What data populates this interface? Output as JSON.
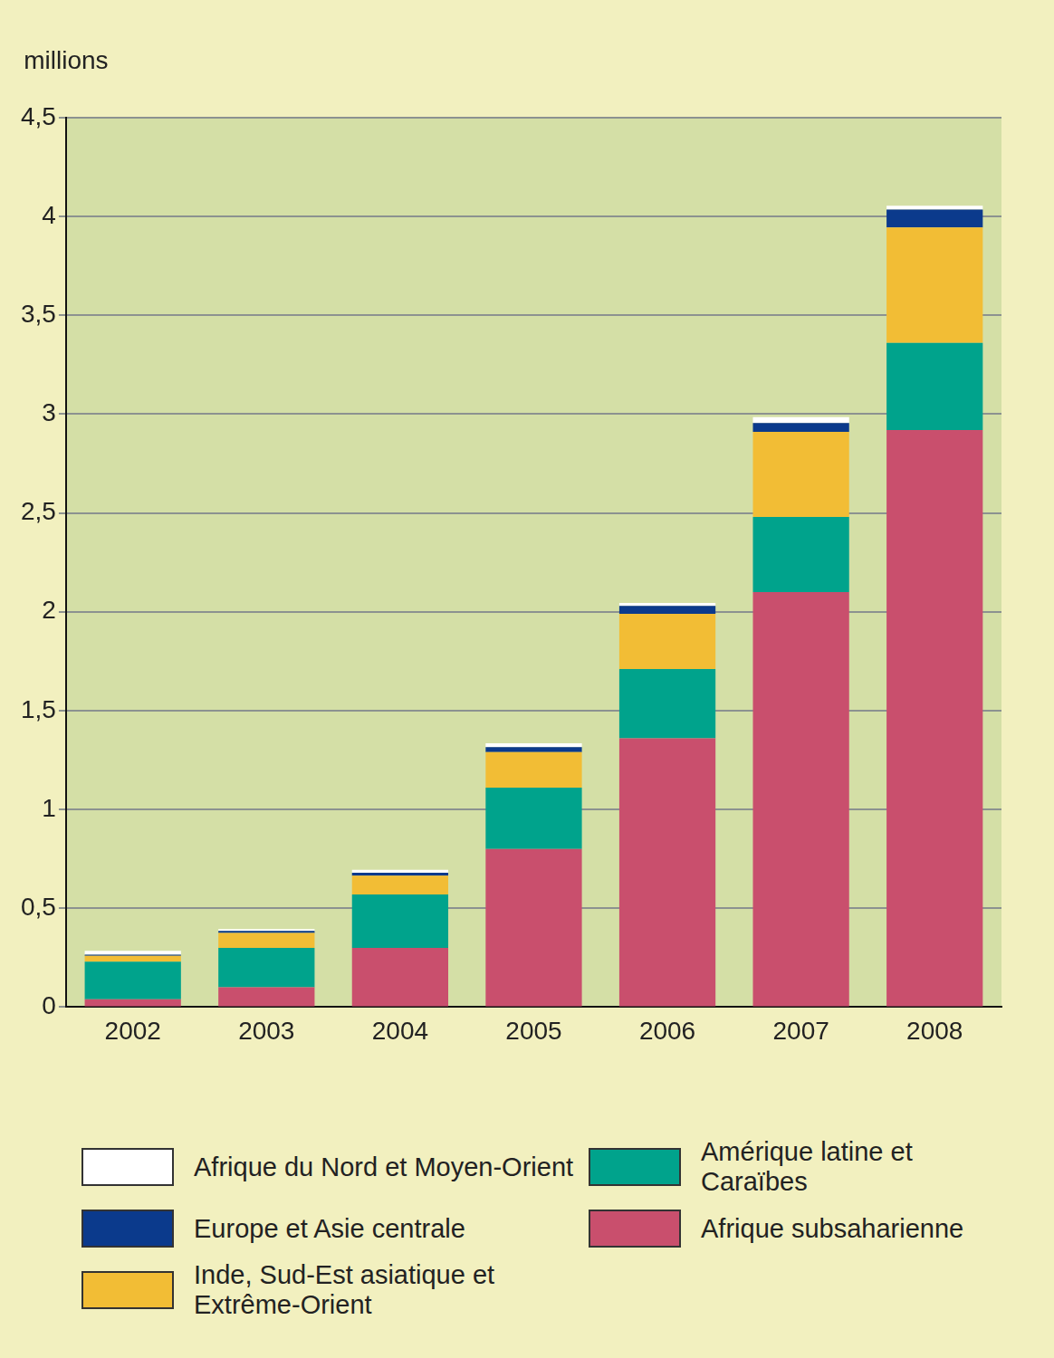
{
  "chart_data": {
    "type": "bar",
    "stacked": true,
    "grid": true,
    "y_label": "millions",
    "categories": [
      "2002",
      "2003",
      "2004",
      "2005",
      "2006",
      "2007",
      "2008"
    ],
    "series": [
      {
        "name": "Afrique subsaharienne",
        "color": "#c94f6d",
        "values": [
          0.04,
          0.1,
          0.3,
          0.8,
          1.36,
          2.1,
          2.92
        ]
      },
      {
        "name": "Amérique latine et Caraïbes",
        "color": "#00a38c",
        "values": [
          0.19,
          0.2,
          0.27,
          0.31,
          0.35,
          0.38,
          0.44
        ]
      },
      {
        "name": "Inde, Sud-Est asiatique et Extrême-Orient",
        "color": "#f2bd35",
        "values": [
          0.03,
          0.075,
          0.095,
          0.18,
          0.28,
          0.43,
          0.585
        ]
      },
      {
        "name": "Europe et Asie centrale",
        "color": "#0b3a8c",
        "values": [
          0.005,
          0.01,
          0.015,
          0.025,
          0.04,
          0.045,
          0.09
        ]
      },
      {
        "name": "Afrique du Nord et Moyen-Orient",
        "color": "#ffffff",
        "values": [
          0.02,
          0.01,
          0.015,
          0.02,
          0.015,
          0.03,
          0.02
        ]
      }
    ],
    "ylim": [
      0,
      4.5
    ],
    "yticks": [
      0,
      {
        "value": 0.5,
        "label": "0,5"
      },
      1,
      {
        "value": 1.5,
        "label": "1,5"
      },
      2,
      {
        "value": 2.5,
        "label": "2,5"
      },
      3,
      {
        "value": 3.5,
        "label": "3,5"
      },
      4,
      {
        "value": 4.5,
        "label": "4,5"
      }
    ]
  }
}
